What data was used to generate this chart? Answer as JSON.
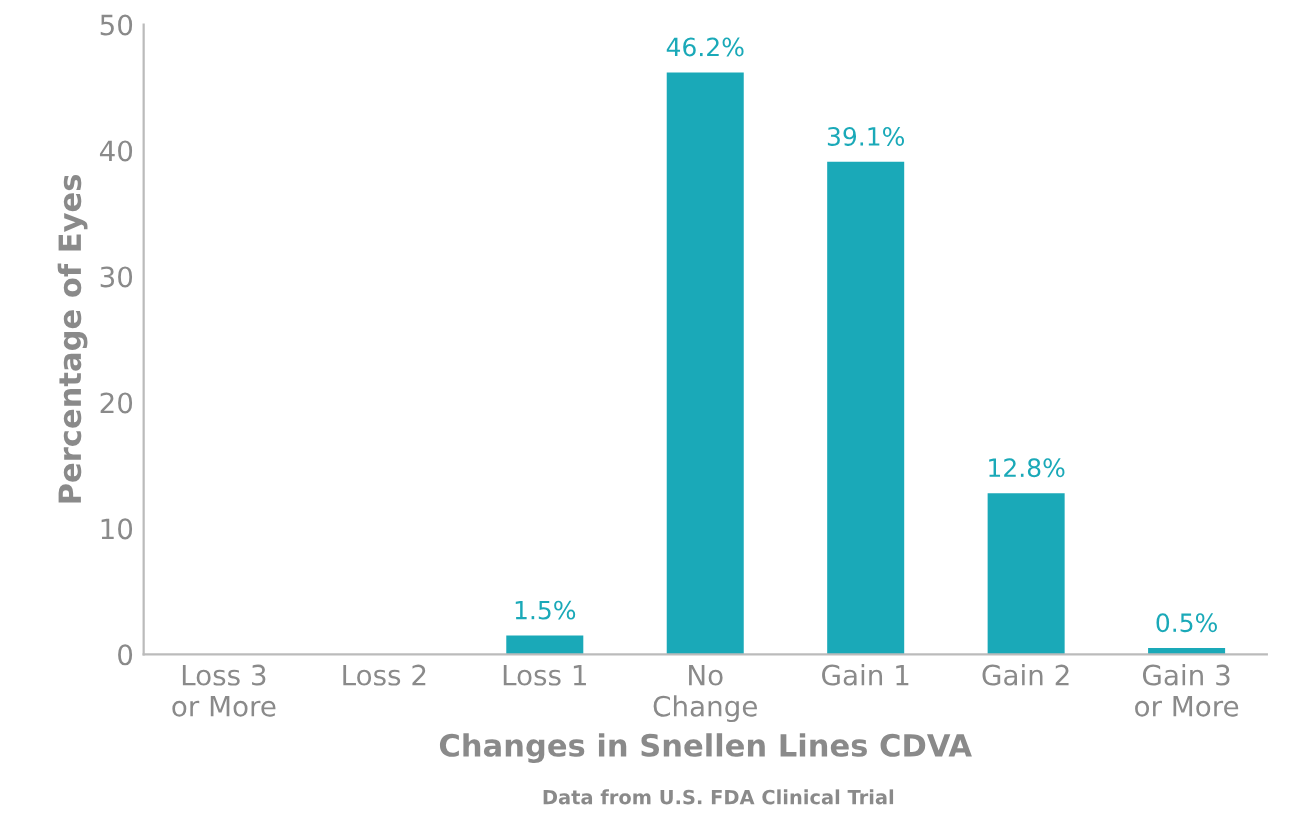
{
  "chart_data": {
    "type": "bar",
    "xlabel": "Changes in Snellen Lines CDVA",
    "ylabel": "Percentage of Eyes",
    "annotations": [
      "Data from U.S. FDA Clinical Trial"
    ],
    "categories": [
      "Loss 3\nor More",
      "Loss 2",
      "Loss 1",
      "No\nChange",
      "Gain 1",
      "Gain 2",
      "Gain 3\nor More"
    ],
    "values": [
      0,
      0,
      1.5,
      46.2,
      39.1,
      12.8,
      0.5
    ],
    "value_labels": [
      null,
      null,
      "1.5%",
      "46.2%",
      "39.1%",
      "12.8%",
      "0.5%"
    ],
    "color": "#1aa9b8",
    "ylim": [
      0,
      50
    ],
    "yticks": [
      0,
      10,
      20,
      30,
      40,
      50
    ],
    "grid": false
  }
}
